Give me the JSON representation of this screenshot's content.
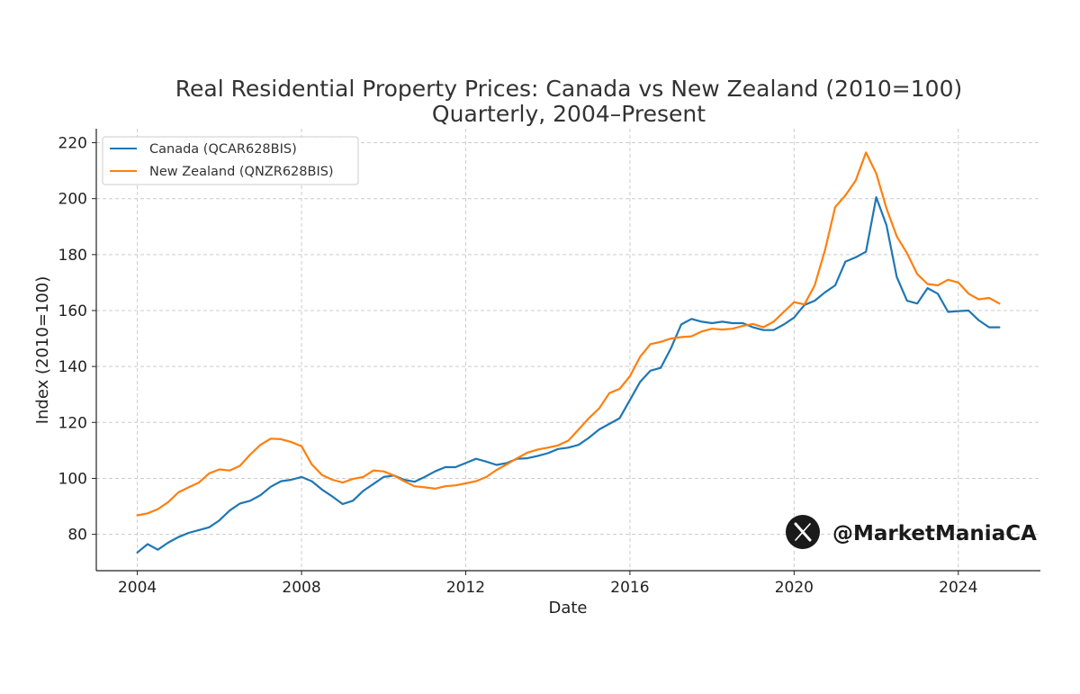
{
  "chart_data": {
    "type": "line",
    "title": "Real Residential Property Prices: Canada vs New Zealand (2010=100)",
    "subtitle": "Quarterly, 2004–Present",
    "xlabel": "Date",
    "ylabel": "Index (2010=100)",
    "xlim": [
      2003.0,
      2026.0
    ],
    "ylim": [
      67,
      225
    ],
    "x_ticks": [
      2004,
      2008,
      2012,
      2016,
      2020,
      2024
    ],
    "y_ticks": [
      80,
      100,
      120,
      140,
      160,
      180,
      200,
      220
    ],
    "grid": true,
    "legend_position": "upper-left",
    "series": [
      {
        "name": "Canada (QCAR628BIS)",
        "color": "#1f77b4",
        "x": [
          2004.0,
          2004.25,
          2004.5,
          2004.75,
          2005.0,
          2005.25,
          2005.5,
          2005.75,
          2006.0,
          2006.25,
          2006.5,
          2006.75,
          2007.0,
          2007.25,
          2007.5,
          2007.75,
          2008.0,
          2008.25,
          2008.5,
          2008.75,
          2009.0,
          2009.25,
          2009.5,
          2009.75,
          2010.0,
          2010.25,
          2010.5,
          2010.75,
          2011.0,
          2011.25,
          2011.5,
          2011.75,
          2012.0,
          2012.25,
          2012.5,
          2012.75,
          2013.0,
          2013.25,
          2013.5,
          2013.75,
          2014.0,
          2014.25,
          2014.5,
          2014.75,
          2015.0,
          2015.25,
          2015.5,
          2015.75,
          2016.0,
          2016.25,
          2016.5,
          2016.75,
          2017.0,
          2017.25,
          2017.5,
          2017.75,
          2018.0,
          2018.25,
          2018.5,
          2018.75,
          2019.0,
          2019.25,
          2019.5,
          2019.75,
          2020.0,
          2020.25,
          2020.5,
          2020.75,
          2021.0,
          2021.25,
          2021.5,
          2021.75,
          2022.0,
          2022.25,
          2022.5,
          2022.75,
          2023.0,
          2023.25,
          2023.5,
          2023.75,
          2024.0,
          2024.25,
          2024.5,
          2024.75,
          2025.0
        ],
        "values": [
          73.5,
          76.5,
          74.5,
          77,
          79,
          80.5,
          81.5,
          82.5,
          85,
          88.5,
          91,
          92,
          94,
          97,
          99,
          99.5,
          100.5,
          99,
          96,
          93.5,
          90.8,
          92,
          95.5,
          98,
          100.5,
          101,
          99.5,
          98.8,
          100.5,
          102.5,
          104,
          104,
          105.5,
          107,
          106,
          104.8,
          105.5,
          107,
          107.2,
          108,
          109,
          110.5,
          111,
          112,
          114.5,
          117.5,
          119.5,
          121.5,
          128,
          134.5,
          138.5,
          139.5,
          146.5,
          155,
          157,
          156,
          155.5,
          156,
          155.5,
          155.5,
          154,
          153,
          153,
          155,
          157.5,
          162,
          163.5,
          166.5,
          169,
          177.5,
          179,
          181,
          200.5,
          190.5,
          172,
          163.5,
          162.5,
          168,
          166,
          159.5,
          159.8,
          160,
          156.5,
          154,
          154
        ]
      },
      {
        "name": "New Zealand (QNZR628BIS)",
        "color": "#ff7f0e",
        "x": [
          2004.0,
          2004.25,
          2004.5,
          2004.75,
          2005.0,
          2005.25,
          2005.5,
          2005.75,
          2006.0,
          2006.25,
          2006.5,
          2006.75,
          2007.0,
          2007.25,
          2007.5,
          2007.75,
          2008.0,
          2008.25,
          2008.5,
          2008.75,
          2009.0,
          2009.25,
          2009.5,
          2009.75,
          2010.0,
          2010.25,
          2010.5,
          2010.75,
          2011.0,
          2011.25,
          2011.5,
          2011.75,
          2012.0,
          2012.25,
          2012.5,
          2012.75,
          2013.0,
          2013.25,
          2013.5,
          2013.75,
          2014.0,
          2014.25,
          2014.5,
          2014.75,
          2015.0,
          2015.25,
          2015.5,
          2015.75,
          2016.0,
          2016.25,
          2016.5,
          2016.75,
          2017.0,
          2017.25,
          2017.5,
          2017.75,
          2018.0,
          2018.25,
          2018.5,
          2018.75,
          2019.0,
          2019.25,
          2019.5,
          2019.75,
          2020.0,
          2020.25,
          2020.5,
          2020.75,
          2021.0,
          2021.25,
          2021.5,
          2021.75,
          2022.0,
          2022.25,
          2022.5,
          2022.75,
          2023.0,
          2023.25,
          2023.5,
          2023.75,
          2024.0,
          2024.25,
          2024.5,
          2024.75,
          2025.0
        ],
        "values": [
          86.8,
          87.5,
          89,
          91.5,
          95,
          96.8,
          98.5,
          101.8,
          103.2,
          102.8,
          104.5,
          108.5,
          112,
          114.2,
          114,
          113,
          111.5,
          105,
          101.2,
          99.5,
          98.5,
          99.8,
          100.5,
          102.8,
          102.5,
          101,
          99,
          97.2,
          96.8,
          96.3,
          97.2,
          97.5,
          98.2,
          99,
          100.5,
          103,
          105,
          107.2,
          109.2,
          110.3,
          111,
          111.8,
          113.5,
          117.5,
          121.5,
          125,
          130.5,
          132,
          136.5,
          143.5,
          148,
          148.8,
          150,
          150.5,
          150.8,
          152.5,
          153.5,
          153.2,
          153.5,
          154.5,
          155.2,
          154,
          156,
          159.5,
          163,
          162.2,
          169,
          181.5,
          197,
          201.2,
          206.5,
          216.5,
          209,
          196.5,
          186.5,
          180.5,
          173,
          169.5,
          169,
          171,
          170,
          166,
          164,
          164.5,
          162.5
        ]
      }
    ]
  },
  "watermark": {
    "icon": "x-logo-icon",
    "handle": "@MarketManiaCA"
  }
}
